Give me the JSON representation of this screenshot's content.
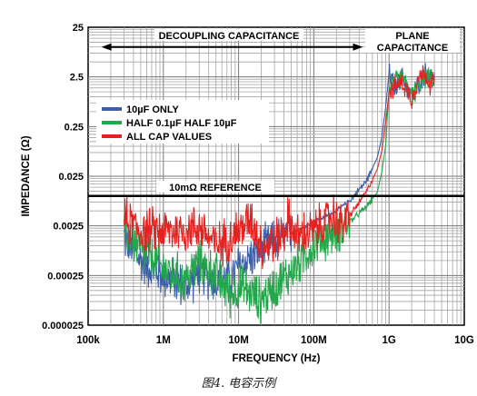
{
  "caption": "图4. 电容示例",
  "chart_data": {
    "type": "line",
    "xlabel": "FREQUENCY (Hz)",
    "ylabel": "IMPEDANCE (Ω)",
    "x_scale": "log",
    "y_scale": "log",
    "xlim": [
      100000,
      10000000000
    ],
    "ylim": [
      2.5e-05,
      25
    ],
    "x_ticks": [
      {
        "value": 100000,
        "label": "100k"
      },
      {
        "value": 1000000,
        "label": "1M"
      },
      {
        "value": 10000000,
        "label": "10M"
      },
      {
        "value": 100000000,
        "label": "100M"
      },
      {
        "value": 1000000000,
        "label": "1G"
      },
      {
        "value": 10000000000,
        "label": "10G"
      }
    ],
    "y_ticks": [
      {
        "value": 2.5e-05,
        "label": "0.000025"
      },
      {
        "value": 0.00025,
        "label": "0.00025"
      },
      {
        "value": 0.0025,
        "label": "0.0025"
      },
      {
        "value": 0.025,
        "label": "0.025"
      },
      {
        "value": 0.25,
        "label": "0.25"
      },
      {
        "value": 2.5,
        "label": "2.5"
      },
      {
        "value": 25,
        "label": "25"
      }
    ],
    "grid": true,
    "legend_position": "upper-left",
    "annotations": {
      "decoupling": {
        "text": "DECOUPLING CAPACITANCE",
        "x_range": [
          150000,
          450000000
        ],
        "y": 10
      },
      "plane": {
        "line1": "PLANE",
        "line2": "CAPACITANCE",
        "x_range": [
          550000000,
          4500000000
        ],
        "y": 10
      },
      "reference": {
        "text": "10mΩ REFERENCE",
        "value": 0.01
      }
    },
    "series": [
      {
        "name": "10µF ONLY",
        "color": "#3d5ea8",
        "x": [
          300000,
          500000,
          1000000,
          2000000,
          3000000,
          5000000,
          8000000,
          10000000,
          20000000,
          30000000,
          50000000,
          80000000,
          100000000,
          200000000,
          300000000,
          500000000,
          700000000,
          800000000,
          900000000,
          1000000000,
          1200000000,
          1500000000,
          2000000000,
          3000000000,
          4000000000
        ],
        "y": [
          0.0015,
          0.0005,
          0.00025,
          0.00015,
          0.0003,
          0.0002,
          0.0002,
          0.0004,
          0.0008,
          0.0012,
          0.0018,
          0.0025,
          0.003,
          0.005,
          0.008,
          0.02,
          0.06,
          0.15,
          0.6,
          3.0,
          1.5,
          2.5,
          1.0,
          3.0,
          2.0
        ]
      },
      {
        "name": "HALF 0.1µF HALF 10µF",
        "color": "#22a84a",
        "x": [
          300000,
          500000,
          1000000,
          2000000,
          3000000,
          5000000,
          8000000,
          10000000,
          20000000,
          30000000,
          50000000,
          80000000,
          100000000,
          200000000,
          300000000,
          500000000,
          700000000,
          800000000,
          900000000,
          1000000000,
          1200000000,
          1500000000,
          2000000000,
          3000000000,
          4000000000
        ],
        "y": [
          0.002,
          0.0008,
          0.00035,
          0.0002,
          0.0005,
          0.00025,
          0.0001,
          0.00015,
          8e-05,
          0.00015,
          0.0003,
          0.0007,
          0.001,
          0.002,
          0.003,
          0.006,
          0.012,
          0.03,
          0.1,
          1.5,
          2.0,
          2.5,
          1.0,
          2.5,
          2.0
        ]
      },
      {
        "name": "ALL CAP VALUES",
        "color": "#e5221f",
        "x": [
          300000,
          500000,
          1000000,
          2000000,
          3000000,
          5000000,
          8000000,
          10000000,
          15000000,
          20000000,
          30000000,
          40000000,
          45000000,
          60000000,
          100000000,
          150000000,
          180000000,
          220000000,
          300000000,
          500000000,
          700000000,
          800000000,
          900000000,
          1000000000,
          1200000000,
          1500000000,
          2000000000,
          2500000000,
          3000000000,
          3500000000,
          4000000000
        ],
        "y": [
          0.0035,
          0.002,
          0.002,
          0.002,
          0.0025,
          0.001,
          0.0015,
          0.002,
          0.0035,
          0.001,
          0.0012,
          0.0018,
          0.0035,
          0.0015,
          0.002,
          0.003,
          0.0045,
          0.0025,
          0.004,
          0.012,
          0.035,
          0.08,
          0.3,
          1.2,
          1.6,
          2.0,
          0.9,
          2.5,
          3.0,
          1.8,
          2.2
        ]
      }
    ]
  }
}
